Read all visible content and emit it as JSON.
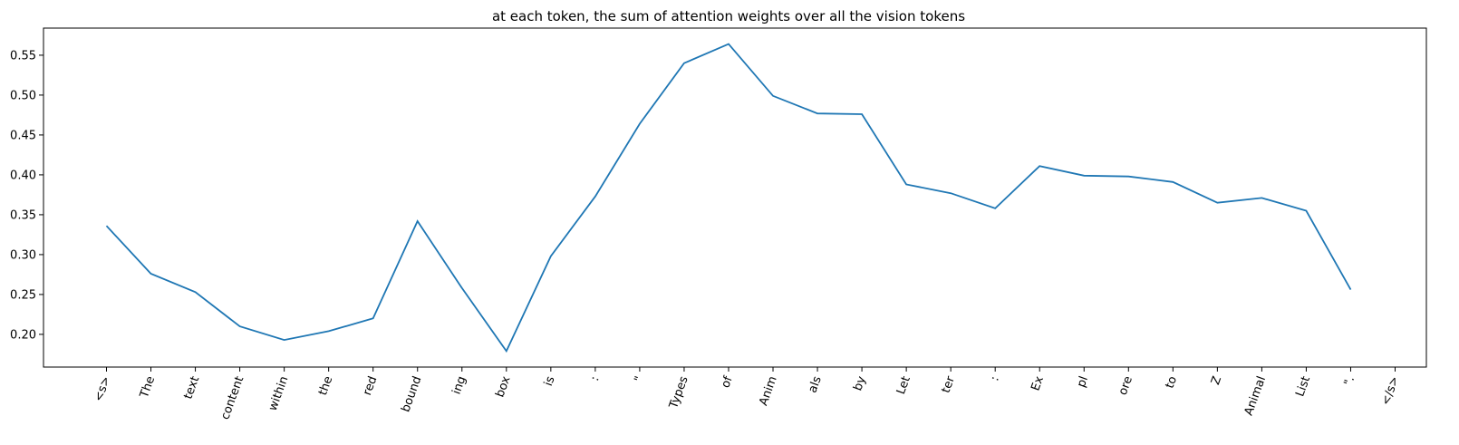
{
  "chart_data": {
    "type": "line",
    "title": "at each token, the sum of attention weights over all the vision tokens",
    "xlabel": "",
    "ylabel": "",
    "categories": [
      "<s>",
      "The",
      "text",
      "content",
      "within",
      "the",
      "red",
      "bound",
      "ing",
      "box",
      "is",
      ":",
      "\"",
      "Types",
      "of",
      "Anim",
      "als",
      "by",
      "Let",
      "ter",
      ":",
      "Ex",
      "pl",
      "ore",
      "to",
      "Z",
      "Animal",
      "List",
      "\".",
      "</s>"
    ],
    "series": [
      {
        "color": "#1f77b4",
        "values": [
          0.336,
          0.276,
          0.253,
          0.21,
          0.193,
          0.204,
          0.22,
          0.342,
          0.258,
          0.179,
          0.298,
          0.373,
          0.464,
          0.54,
          0.564,
          0.499,
          0.477,
          0.476,
          0.388,
          0.377,
          0.358,
          0.411,
          0.399,
          0.398,
          0.391,
          0.365,
          0.371,
          0.355,
          0.256,
          null
        ]
      }
    ],
    "yticks": [
      "0.20",
      "0.25",
      "0.30",
      "0.35",
      "0.40",
      "0.45",
      "0.50",
      "0.55"
    ],
    "ylim": [
      0.159,
      0.584
    ],
    "grid": false,
    "xtick_rotation": 70
  }
}
